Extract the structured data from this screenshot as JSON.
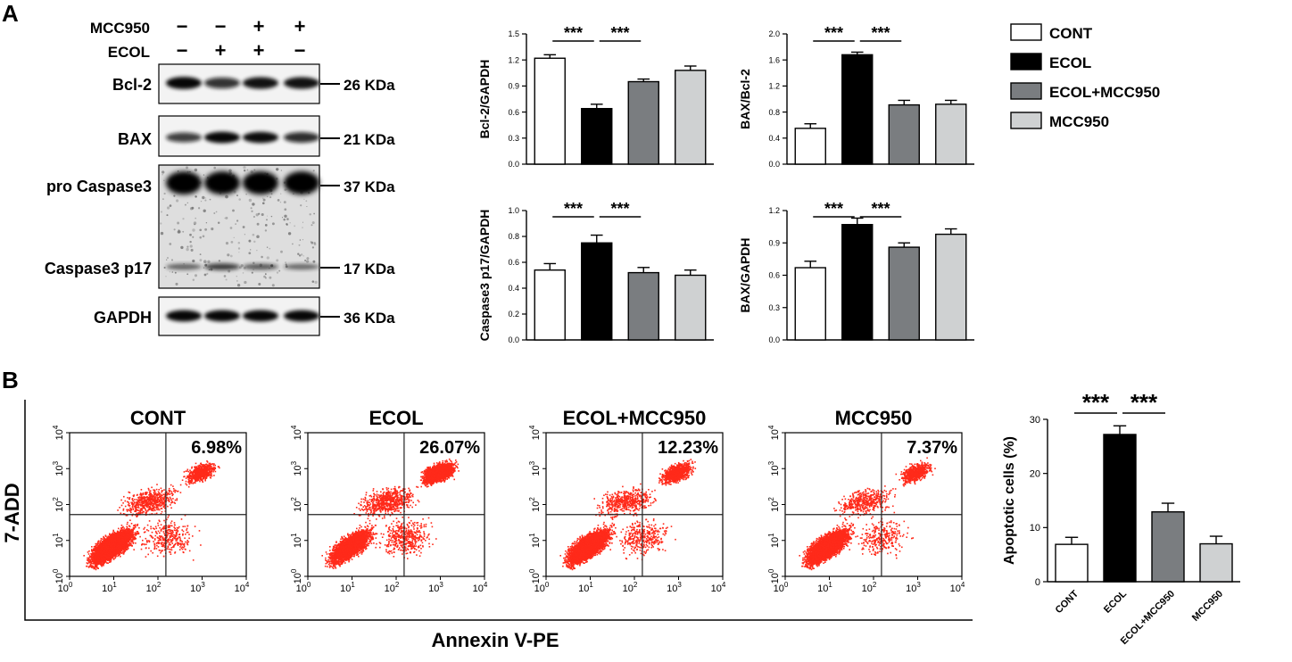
{
  "panel_labels": [
    "A",
    "B"
  ],
  "colors": {
    "CONT": "#ffffff",
    "ECOL": "#000000",
    "ECOL+MCC950": "#7a7d80",
    "MCC950": "#cfd1d2",
    "dots": "#ff2a1a"
  },
  "western_blot": {
    "treatment_rows": [
      {
        "label": "MCC950",
        "signs": [
          "−",
          "−",
          "+",
          "+"
        ]
      },
      {
        "label": "ECOL",
        "signs": [
          "−",
          "+",
          "+",
          "−"
        ]
      }
    ],
    "bands": [
      {
        "label": "Bcl-2",
        "marker": "26 KDa"
      },
      {
        "label": "BAX",
        "marker": "21 KDa"
      },
      {
        "label": "pro Caspase3",
        "marker": "37 KDa"
      },
      {
        "label": "Caspase3 p17",
        "marker": "17 KDa"
      },
      {
        "label": "GAPDH",
        "marker": "36 KDa"
      }
    ]
  },
  "legend": [
    "CONT",
    "ECOL",
    "ECOL+MCC950",
    "MCC950"
  ],
  "flow_cytometry": {
    "ylabel": "7-ADD",
    "xlabel": "Annexin V-PE",
    "plots": [
      {
        "title": "CONT",
        "percent": "6.98%"
      },
      {
        "title": "ECOL",
        "percent": "26.07%"
      },
      {
        "title": "ECOL+MCC950",
        "percent": "12.23%"
      },
      {
        "title": "MCC950",
        "percent": "7.37%"
      }
    ],
    "tick_base": "10",
    "tick_exponents": [
      "0",
      "1",
      "2",
      "3",
      "4"
    ]
  },
  "chart_data": [
    {
      "type": "bar",
      "id": "bcl2",
      "categories": [
        "CONT",
        "ECOL",
        "ECOL+MCC950",
        "MCC950"
      ],
      "values": [
        1.22,
        0.64,
        0.95,
        1.08
      ],
      "errors": [
        0.04,
        0.05,
        0.03,
        0.05
      ],
      "ylabel": "Bcl-2/GAPDH",
      "ylim": [
        0,
        1.5
      ],
      "yticks": [
        "0.0",
        "0.3",
        "0.6",
        "0.9",
        "1.2",
        "1.5"
      ],
      "significance": [
        "***",
        "***"
      ]
    },
    {
      "type": "bar",
      "id": "baxbcl2",
      "categories": [
        "CONT",
        "ECOL",
        "ECOL+MCC950",
        "MCC950"
      ],
      "values": [
        0.55,
        1.68,
        0.91,
        0.92
      ],
      "errors": [
        0.07,
        0.04,
        0.07,
        0.06
      ],
      "ylabel": "BAX/Bcl-2",
      "ylim": [
        0,
        2.0
      ],
      "yticks": [
        "0.0",
        "0.4",
        "0.8",
        "1.2",
        "1.6",
        "2.0"
      ],
      "significance": [
        "***",
        "***"
      ]
    },
    {
      "type": "bar",
      "id": "casp3",
      "categories": [
        "CONT",
        "ECOL",
        "ECOL+MCC950",
        "MCC950"
      ],
      "values": [
        0.54,
        0.75,
        0.52,
        0.5
      ],
      "errors": [
        0.05,
        0.06,
        0.04,
        0.04
      ],
      "ylabel": "Caspase3 p17/GAPDH",
      "ylim": [
        0,
        1.0
      ],
      "yticks": [
        "0.0",
        "0.2",
        "0.4",
        "0.6",
        "0.8",
        "1.0"
      ],
      "significance": [
        "***",
        "***"
      ]
    },
    {
      "type": "bar",
      "id": "baxgapdh",
      "categories": [
        "CONT",
        "ECOL",
        "ECOL+MCC950",
        "MCC950"
      ],
      "values": [
        0.67,
        1.07,
        0.86,
        0.98
      ],
      "errors": [
        0.06,
        0.06,
        0.04,
        0.05
      ],
      "ylabel": "BAX/GAPDH",
      "ylim": [
        0,
        1.2
      ],
      "yticks": [
        "0.0",
        "0.3",
        "0.6",
        "0.9",
        "1.2"
      ],
      "significance": [
        "***",
        "***"
      ]
    },
    {
      "type": "bar",
      "id": "apoptosis",
      "categories": [
        "CONT",
        "ECOL",
        "ECOL+MCC950",
        "MCC950"
      ],
      "values": [
        6.9,
        27.2,
        12.9,
        7.0
      ],
      "errors": [
        1.3,
        1.6,
        1.6,
        1.4
      ],
      "ylabel": "Apoptotic cells (%)",
      "ylim": [
        0,
        30
      ],
      "yticks": [
        "0",
        "10",
        "20",
        "30"
      ],
      "significance": [
        "***",
        "***"
      ]
    }
  ]
}
